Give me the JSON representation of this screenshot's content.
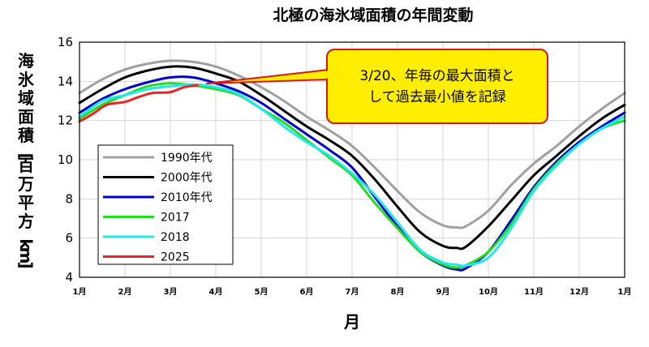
{
  "chart_data": {
    "type": "line",
    "title": "北極の海氷域面積の年間変動",
    "xlabel": "月",
    "ylabel": "海氷域面積[百万平方km]",
    "x_ticks": [
      "1月",
      "2月",
      "3月",
      "4月",
      "5月",
      "6月",
      "7月",
      "8月",
      "9月",
      "10月",
      "11月",
      "12月",
      "1月"
    ],
    "y_ticks": [
      4,
      6,
      8,
      10,
      12,
      14,
      16
    ],
    "xlim": [
      1,
      13
    ],
    "ylim": [
      4,
      16
    ],
    "grid": true,
    "legend_position": "lower-left",
    "annotation": {
      "lines": [
        "3/20、年毎の最大面積と",
        "して過去最小値を記録"
      ],
      "target": [
        3.65,
        13.8
      ]
    },
    "series": [
      {
        "name": "1990年代",
        "color": "#a0a0a0",
        "x": [
          1.0,
          1.5,
          2.0,
          2.5,
          3.0,
          3.5,
          4.0,
          4.5,
          5.0,
          5.5,
          6.0,
          6.5,
          7.0,
          7.5,
          8.0,
          8.5,
          9.0,
          9.3,
          9.5,
          10.0,
          10.5,
          11.0,
          11.5,
          12.0,
          12.5,
          13.0
        ],
        "y": [
          13.4,
          14.1,
          14.6,
          14.9,
          15.05,
          15.0,
          14.75,
          14.3,
          13.7,
          13.0,
          12.2,
          11.5,
          10.7,
          9.6,
          8.4,
          7.3,
          6.65,
          6.55,
          6.6,
          7.4,
          8.7,
          9.8,
          10.7,
          11.7,
          12.6,
          13.4
        ]
      },
      {
        "name": "2000年代",
        "color": "#000000",
        "x": [
          1.0,
          1.5,
          2.0,
          2.5,
          3.0,
          3.5,
          4.0,
          4.5,
          5.0,
          5.5,
          6.0,
          6.5,
          7.0,
          7.5,
          8.0,
          8.5,
          9.0,
          9.3,
          9.5,
          10.0,
          10.5,
          11.0,
          11.5,
          12.0,
          12.5,
          13.0
        ],
        "y": [
          12.9,
          13.6,
          14.2,
          14.55,
          14.75,
          14.7,
          14.4,
          14.0,
          13.3,
          12.5,
          11.7,
          11.0,
          10.2,
          9.0,
          7.6,
          6.3,
          5.6,
          5.5,
          5.55,
          6.6,
          7.9,
          9.2,
          10.2,
          11.2,
          12.1,
          12.8
        ]
      },
      {
        "name": "2010年代",
        "color": "#0000cc",
        "x": [
          1.0,
          1.5,
          2.0,
          2.5,
          3.0,
          3.5,
          4.0,
          4.5,
          5.0,
          5.5,
          6.0,
          6.5,
          7.0,
          7.5,
          8.0,
          8.5,
          9.0,
          9.3,
          9.5,
          10.0,
          10.5,
          11.0,
          11.5,
          12.0,
          12.5,
          13.0
        ],
        "y": [
          12.4,
          13.1,
          13.6,
          13.95,
          14.2,
          14.2,
          13.9,
          13.5,
          12.9,
          12.1,
          11.3,
          10.5,
          9.6,
          8.1,
          6.6,
          5.3,
          4.6,
          4.4,
          4.45,
          5.3,
          6.9,
          8.6,
          9.9,
          10.9,
          11.7,
          12.4
        ]
      },
      {
        "name": "2017",
        "color": "#22dd22",
        "x": [
          1.0,
          1.5,
          2.0,
          2.5,
          3.0,
          3.5,
          4.0,
          4.5,
          5.0,
          5.5,
          6.0,
          6.5,
          7.0,
          7.5,
          8.0,
          8.5,
          9.0,
          9.3,
          9.5,
          10.0,
          10.5,
          11.0,
          11.5,
          12.0,
          12.5,
          13.0
        ],
        "y": [
          12.1,
          12.8,
          13.3,
          13.75,
          13.9,
          13.8,
          13.6,
          13.3,
          12.6,
          11.9,
          11.0,
          10.1,
          9.2,
          7.8,
          6.5,
          5.3,
          4.65,
          4.5,
          4.6,
          5.3,
          6.7,
          8.5,
          9.8,
          10.8,
          11.6,
          12.0
        ]
      },
      {
        "name": "2018",
        "color": "#22e8ee",
        "x": [
          1.0,
          1.5,
          2.0,
          2.5,
          3.0,
          3.5,
          4.0,
          4.5,
          5.0,
          5.5,
          6.0,
          6.5,
          7.0,
          7.5,
          8.0,
          8.5,
          9.0,
          9.3,
          9.5,
          10.0,
          10.5,
          11.0,
          11.5,
          12.0,
          12.5,
          13.0
        ],
        "y": [
          12.2,
          13.0,
          13.3,
          13.6,
          13.75,
          13.85,
          13.7,
          13.35,
          12.6,
          11.7,
          10.9,
          10.2,
          9.3,
          8.2,
          6.8,
          5.4,
          4.75,
          4.65,
          4.6,
          5.0,
          6.5,
          8.4,
          9.7,
          10.8,
          11.6,
          12.2
        ]
      },
      {
        "name": "2025",
        "color": "#ee2222",
        "x": [
          1.0,
          1.3,
          1.6,
          2.0,
          2.3,
          2.6,
          3.0,
          3.3,
          3.6
        ],
        "y": [
          11.95,
          12.35,
          12.8,
          12.95,
          13.2,
          13.4,
          13.45,
          13.7,
          13.8
        ]
      }
    ]
  }
}
